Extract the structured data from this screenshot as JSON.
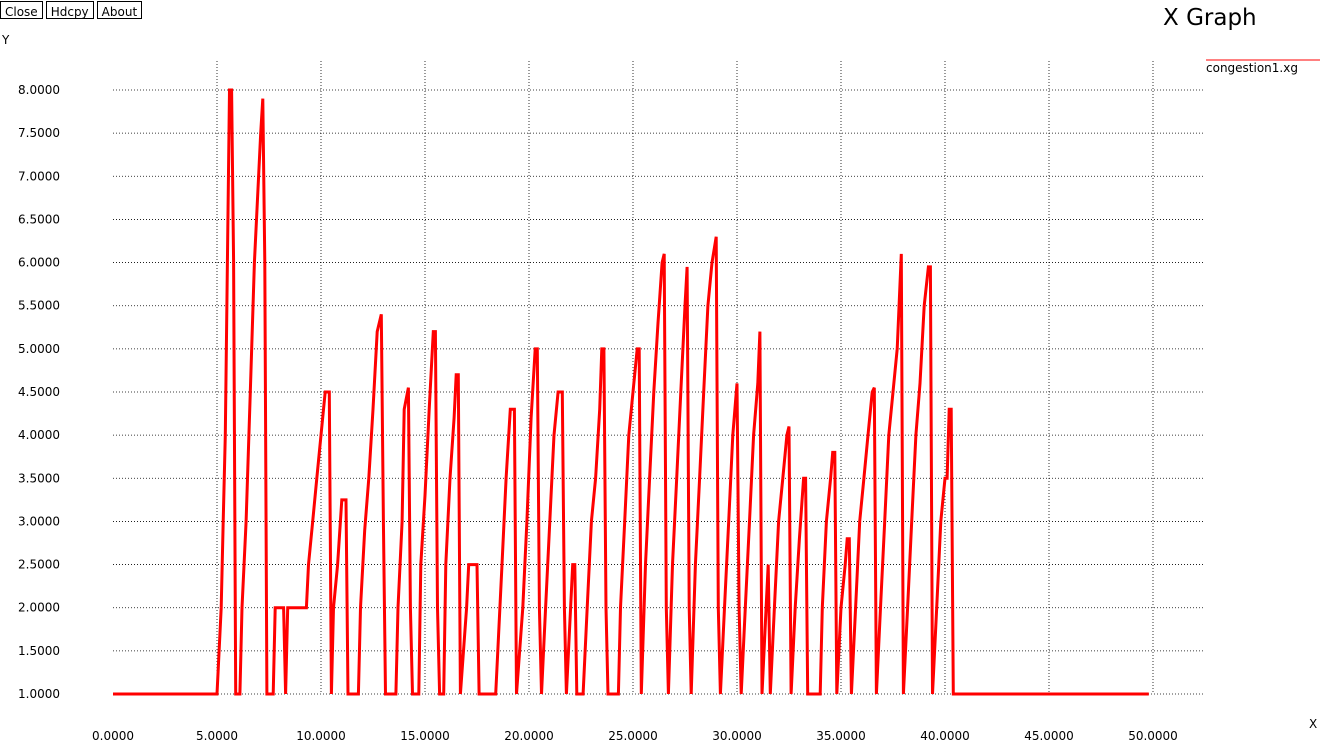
{
  "toolbar": {
    "close": "Close",
    "hdcpy": "Hdcpy",
    "about": "About"
  },
  "window_title": "X Graph",
  "chart_data": {
    "type": "line",
    "xlabel": "X",
    "ylabel": "Y",
    "xlim": [
      0,
      50
    ],
    "ylim": [
      1,
      8
    ],
    "xticks": [
      0,
      5,
      10,
      15,
      20,
      25,
      30,
      35,
      40,
      45,
      50
    ],
    "yticks": [
      1.0,
      1.5,
      2.0,
      2.5,
      3.0,
      3.5,
      4.0,
      4.5,
      5.0,
      5.5,
      6.0,
      6.5,
      7.0,
      7.5,
      8.0
    ],
    "xtick_labels": [
      "0.0000",
      "5.0000",
      "10.0000",
      "15.0000",
      "20.0000",
      "25.0000",
      "30.0000",
      "35.0000",
      "40.0000",
      "45.0000",
      "50.0000"
    ],
    "ytick_labels": [
      "1.0000",
      "1.5000",
      "2.0000",
      "2.5000",
      "3.0000",
      "3.5000",
      "4.0000",
      "4.5000",
      "5.0000",
      "5.5000",
      "6.0000",
      "6.5000",
      "7.0000",
      "7.5000",
      "8.0000"
    ],
    "grid": true,
    "legend_position": "top-right",
    "series": [
      {
        "name": "congestion1.xg",
        "color": "#ff0000",
        "points": [
          [
            0.0,
            1.0
          ],
          [
            5.0,
            1.0
          ],
          [
            5.1,
            1.5
          ],
          [
            5.2,
            2.0
          ],
          [
            5.3,
            3.0
          ],
          [
            5.4,
            4.0
          ],
          [
            5.5,
            6.0
          ],
          [
            5.6,
            8.0
          ],
          [
            5.7,
            8.0
          ],
          [
            5.8,
            6.0
          ],
          [
            5.9,
            1.0
          ],
          [
            6.1,
            1.0
          ],
          [
            6.2,
            2.0
          ],
          [
            6.4,
            3.0
          ],
          [
            6.6,
            4.5
          ],
          [
            6.8,
            6.0
          ],
          [
            7.0,
            7.0
          ],
          [
            7.1,
            7.5
          ],
          [
            7.2,
            7.9
          ],
          [
            7.3,
            6.0
          ],
          [
            7.4,
            1.0
          ],
          [
            7.7,
            1.0
          ],
          [
            7.8,
            2.0
          ],
          [
            8.2,
            2.0
          ],
          [
            8.3,
            1.0
          ],
          [
            8.4,
            2.0
          ],
          [
            9.3,
            2.0
          ],
          [
            9.4,
            2.5
          ],
          [
            9.6,
            3.0
          ],
          [
            9.8,
            3.5
          ],
          [
            10.0,
            4.0
          ],
          [
            10.2,
            4.5
          ],
          [
            10.4,
            4.5
          ],
          [
            10.5,
            1.0
          ],
          [
            10.6,
            2.0
          ],
          [
            10.8,
            2.5
          ],
          [
            11.0,
            3.25
          ],
          [
            11.2,
            3.25
          ],
          [
            11.3,
            1.0
          ],
          [
            11.8,
            1.0
          ],
          [
            11.9,
            2.0
          ],
          [
            12.1,
            2.9
          ],
          [
            12.3,
            3.5
          ],
          [
            12.5,
            4.3
          ],
          [
            12.7,
            5.2
          ],
          [
            12.9,
            5.4
          ],
          [
            13.0,
            3.0
          ],
          [
            13.1,
            1.0
          ],
          [
            13.6,
            1.0
          ],
          [
            13.7,
            2.0
          ],
          [
            13.9,
            3.0
          ],
          [
            14.0,
            4.3
          ],
          [
            14.2,
            4.55
          ],
          [
            14.3,
            2.0
          ],
          [
            14.4,
            1.0
          ],
          [
            14.7,
            1.0
          ],
          [
            14.8,
            2.5
          ],
          [
            15.0,
            3.3
          ],
          [
            15.2,
            4.3
          ],
          [
            15.4,
            5.2
          ],
          [
            15.5,
            5.2
          ],
          [
            15.6,
            2.0
          ],
          [
            15.7,
            1.0
          ],
          [
            15.9,
            1.0
          ],
          [
            16.0,
            2.5
          ],
          [
            16.2,
            3.5
          ],
          [
            16.4,
            4.2
          ],
          [
            16.5,
            4.7
          ],
          [
            16.6,
            4.7
          ],
          [
            16.7,
            1.0
          ],
          [
            17.0,
            2.0
          ],
          [
            17.1,
            2.5
          ],
          [
            17.5,
            2.5
          ],
          [
            17.6,
            1.0
          ],
          [
            18.4,
            1.0
          ],
          [
            18.5,
            1.5
          ],
          [
            18.7,
            2.5
          ],
          [
            18.9,
            3.5
          ],
          [
            19.1,
            4.3
          ],
          [
            19.3,
            4.3
          ],
          [
            19.4,
            1.0
          ],
          [
            19.7,
            2.0
          ],
          [
            19.9,
            3.0
          ],
          [
            20.1,
            4.2
          ],
          [
            20.3,
            5.0
          ],
          [
            20.4,
            5.0
          ],
          [
            20.5,
            2.0
          ],
          [
            20.6,
            1.0
          ],
          [
            20.8,
            2.0
          ],
          [
            21.0,
            3.0
          ],
          [
            21.2,
            4.0
          ],
          [
            21.4,
            4.5
          ],
          [
            21.6,
            4.5
          ],
          [
            21.7,
            2.0
          ],
          [
            21.8,
            1.0
          ],
          [
            22.0,
            2.0
          ],
          [
            22.1,
            2.5
          ],
          [
            22.2,
            2.5
          ],
          [
            22.3,
            1.0
          ],
          [
            22.6,
            1.0
          ],
          [
            22.8,
            2.0
          ],
          [
            23.0,
            3.0
          ],
          [
            23.2,
            3.5
          ],
          [
            23.4,
            4.3
          ],
          [
            23.5,
            5.0
          ],
          [
            23.6,
            5.0
          ],
          [
            23.7,
            2.0
          ],
          [
            23.8,
            1.0
          ],
          [
            24.3,
            1.0
          ],
          [
            24.4,
            2.0
          ],
          [
            24.6,
            3.0
          ],
          [
            24.8,
            4.0
          ],
          [
            25.0,
            4.5
          ],
          [
            25.2,
            5.0
          ],
          [
            25.3,
            5.0
          ],
          [
            25.4,
            1.0
          ],
          [
            25.6,
            2.5
          ],
          [
            25.8,
            3.5
          ],
          [
            26.0,
            4.5
          ],
          [
            26.2,
            5.3
          ],
          [
            26.4,
            6.0
          ],
          [
            26.5,
            6.1
          ],
          [
            26.6,
            2.0
          ],
          [
            26.7,
            1.0
          ],
          [
            26.9,
            2.5
          ],
          [
            27.1,
            3.5
          ],
          [
            27.3,
            4.5
          ],
          [
            27.5,
            5.5
          ],
          [
            27.6,
            5.95
          ],
          [
            27.7,
            2.0
          ],
          [
            27.8,
            1.0
          ],
          [
            28.0,
            2.5
          ],
          [
            28.2,
            3.5
          ],
          [
            28.4,
            4.5
          ],
          [
            28.6,
            5.5
          ],
          [
            28.8,
            6.0
          ],
          [
            29.0,
            6.3
          ],
          [
            29.1,
            2.0
          ],
          [
            29.2,
            1.0
          ],
          [
            29.4,
            2.0
          ],
          [
            29.6,
            3.0
          ],
          [
            29.8,
            4.0
          ],
          [
            30.0,
            4.6
          ],
          [
            30.1,
            2.0
          ],
          [
            30.2,
            1.0
          ],
          [
            30.4,
            2.0
          ],
          [
            30.6,
            3.0
          ],
          [
            30.8,
            4.0
          ],
          [
            31.0,
            4.6
          ],
          [
            31.1,
            5.2
          ],
          [
            31.2,
            1.0
          ],
          [
            31.4,
            2.0
          ],
          [
            31.5,
            2.5
          ],
          [
            31.6,
            1.0
          ],
          [
            31.8,
            2.0
          ],
          [
            32.0,
            3.0
          ],
          [
            32.2,
            3.5
          ],
          [
            32.4,
            4.0
          ],
          [
            32.5,
            4.1
          ],
          [
            32.6,
            1.0
          ],
          [
            32.8,
            2.0
          ],
          [
            33.0,
            2.8
          ],
          [
            33.2,
            3.5
          ],
          [
            33.3,
            3.5
          ],
          [
            33.4,
            1.0
          ],
          [
            34.0,
            1.0
          ],
          [
            34.1,
            2.0
          ],
          [
            34.3,
            3.0
          ],
          [
            34.5,
            3.5
          ],
          [
            34.6,
            3.8
          ],
          [
            34.7,
            3.8
          ],
          [
            34.8,
            1.0
          ],
          [
            35.0,
            2.0
          ],
          [
            35.2,
            2.5
          ],
          [
            35.3,
            2.8
          ],
          [
            35.4,
            2.8
          ],
          [
            35.5,
            1.0
          ],
          [
            35.7,
            2.0
          ],
          [
            35.9,
            3.0
          ],
          [
            36.1,
            3.5
          ],
          [
            36.3,
            4.0
          ],
          [
            36.5,
            4.5
          ],
          [
            36.6,
            4.55
          ],
          [
            36.7,
            1.0
          ],
          [
            36.9,
            2.0
          ],
          [
            37.1,
            3.0
          ],
          [
            37.3,
            4.0
          ],
          [
            37.5,
            4.5
          ],
          [
            37.7,
            5.0
          ],
          [
            37.9,
            6.1
          ],
          [
            38.0,
            1.0
          ],
          [
            38.2,
            2.0
          ],
          [
            38.4,
            3.0
          ],
          [
            38.6,
            4.0
          ],
          [
            38.8,
            4.6
          ],
          [
            39.0,
            5.5
          ],
          [
            39.2,
            5.95
          ],
          [
            39.3,
            5.95
          ],
          [
            39.4,
            1.0
          ],
          [
            39.6,
            2.0
          ],
          [
            39.8,
            3.0
          ],
          [
            40.0,
            3.5
          ],
          [
            40.1,
            3.5
          ],
          [
            40.2,
            4.3
          ],
          [
            40.3,
            4.3
          ],
          [
            40.4,
            1.0
          ],
          [
            49.8,
            1.0
          ]
        ]
      }
    ]
  }
}
